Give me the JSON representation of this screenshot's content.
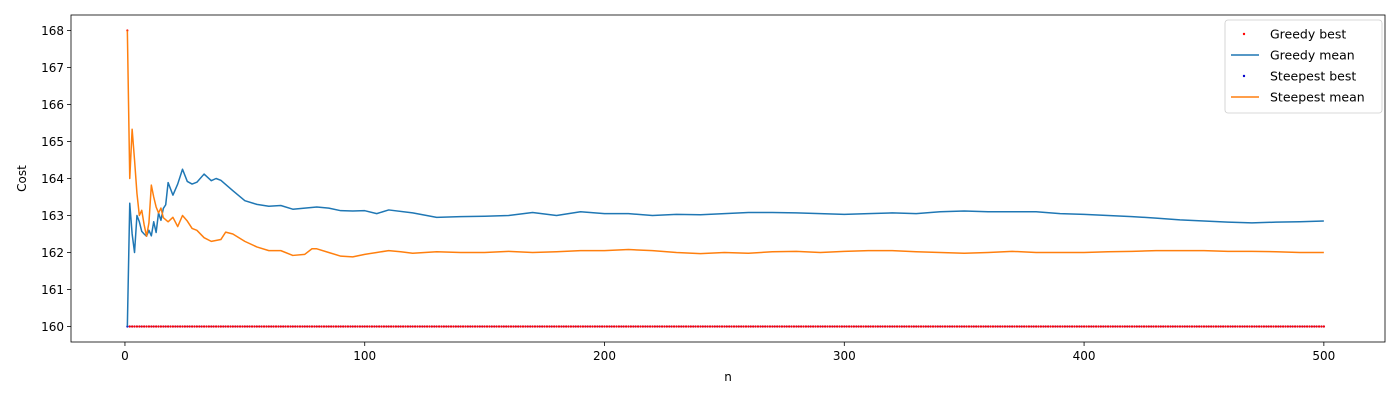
{
  "chart_data": {
    "type": "line",
    "title": "",
    "xlabel": "n",
    "ylabel": "Cost",
    "xlim": [
      -22.5,
      525.5
    ],
    "ylim": [
      159.58,
      168.42
    ],
    "xticks": [
      0,
      100,
      200,
      300,
      400,
      500
    ],
    "yticks": [
      160,
      161,
      162,
      163,
      164,
      165,
      166,
      167,
      168
    ],
    "grid": false,
    "legend_position": "top-right",
    "x_range": [
      1,
      500
    ],
    "series": [
      {
        "name": "Greedy best",
        "style": "points",
        "color": "#ff0000",
        "x": [
          1,
          2,
          500
        ],
        "y": [
          168,
          160,
          160
        ],
        "note_values": "value 168 at n=1, then constant 160 for n=2..500"
      },
      {
        "name": "Greedy mean",
        "style": "line",
        "color": "#1f77b4",
        "x": [
          1,
          2,
          3,
          4,
          5,
          6,
          7,
          8,
          9,
          10,
          11,
          12,
          13,
          14,
          15,
          16,
          17,
          18,
          20,
          22,
          24,
          26,
          28,
          30,
          33,
          36,
          38,
          40,
          45,
          50,
          55,
          60,
          65,
          70,
          75,
          80,
          85,
          90,
          95,
          100,
          105,
          110,
          120,
          130,
          140,
          150,
          160,
          170,
          180,
          190,
          200,
          210,
          220,
          230,
          240,
          250,
          260,
          270,
          280,
          290,
          300,
          310,
          320,
          330,
          340,
          350,
          360,
          370,
          380,
          390,
          400,
          410,
          420,
          430,
          440,
          450,
          460,
          470,
          480,
          490,
          500
        ],
        "y": [
          160,
          163.33,
          162.5,
          162.0,
          163.0,
          162.83,
          162.57,
          162.5,
          162.44,
          162.6,
          162.45,
          162.83,
          162.54,
          163.07,
          162.87,
          163.19,
          163.29,
          163.89,
          163.55,
          163.85,
          164.25,
          163.92,
          163.85,
          163.9,
          164.12,
          163.94,
          164.0,
          163.95,
          163.67,
          163.4,
          163.3,
          163.25,
          163.27,
          163.17,
          163.2,
          163.23,
          163.2,
          163.13,
          163.12,
          163.13,
          163.05,
          163.15,
          163.07,
          162.95,
          162.97,
          162.98,
          163.0,
          163.08,
          163.0,
          163.1,
          163.05,
          163.05,
          163.0,
          163.03,
          163.02,
          163.05,
          163.08,
          163.08,
          163.07,
          163.05,
          163.03,
          163.05,
          163.07,
          163.05,
          163.1,
          163.12,
          163.1,
          163.1,
          163.1,
          163.05,
          163.03,
          163.0,
          162.97,
          162.93,
          162.88,
          162.85,
          162.82,
          162.8,
          162.82,
          162.83,
          162.85
        ]
      },
      {
        "name": "Steepest best",
        "style": "points",
        "color": "#0000cc",
        "x": [
          1,
          500
        ],
        "y": [
          160,
          160
        ],
        "note_values": "constant 160 for n=1..500"
      },
      {
        "name": "Steepest mean",
        "style": "line",
        "color": "#ff7f0e",
        "x": [
          1,
          2,
          3,
          4,
          5,
          6,
          7,
          8,
          9,
          10,
          11,
          12,
          13,
          14,
          15,
          16,
          18,
          20,
          22,
          24,
          26,
          28,
          30,
          33,
          36,
          40,
          42,
          45,
          50,
          55,
          60,
          65,
          70,
          75,
          78,
          80,
          85,
          90,
          95,
          100,
          105,
          110,
          115,
          120,
          125,
          130,
          140,
          150,
          160,
          170,
          180,
          190,
          200,
          210,
          220,
          230,
          240,
          250,
          260,
          270,
          280,
          290,
          300,
          310,
          320,
          330,
          340,
          350,
          360,
          370,
          380,
          390,
          400,
          410,
          420,
          430,
          440,
          450,
          460,
          470,
          480,
          490,
          500
        ],
        "y": [
          168,
          164.0,
          165.33,
          164.5,
          163.6,
          163.0,
          163.14,
          162.75,
          162.44,
          162.8,
          163.82,
          163.5,
          163.23,
          163.07,
          163.2,
          162.94,
          162.83,
          162.95,
          162.7,
          163.0,
          162.85,
          162.65,
          162.6,
          162.4,
          162.3,
          162.35,
          162.55,
          162.5,
          162.3,
          162.15,
          162.05,
          162.05,
          161.92,
          161.95,
          162.1,
          162.1,
          162.0,
          161.9,
          161.88,
          161.95,
          162.0,
          162.05,
          162.02,
          161.98,
          162.0,
          162.02,
          162.0,
          162.0,
          162.03,
          162.0,
          162.02,
          162.05,
          162.05,
          162.08,
          162.05,
          162.0,
          161.97,
          162.0,
          161.98,
          162.02,
          162.03,
          162.0,
          162.03,
          162.05,
          162.05,
          162.02,
          162.0,
          161.98,
          162.0,
          162.03,
          162.0,
          162.0,
          162.0,
          162.02,
          162.03,
          162.05,
          162.05,
          162.05,
          162.03,
          162.03,
          162.02,
          162.0,
          162.0
        ]
      }
    ]
  }
}
